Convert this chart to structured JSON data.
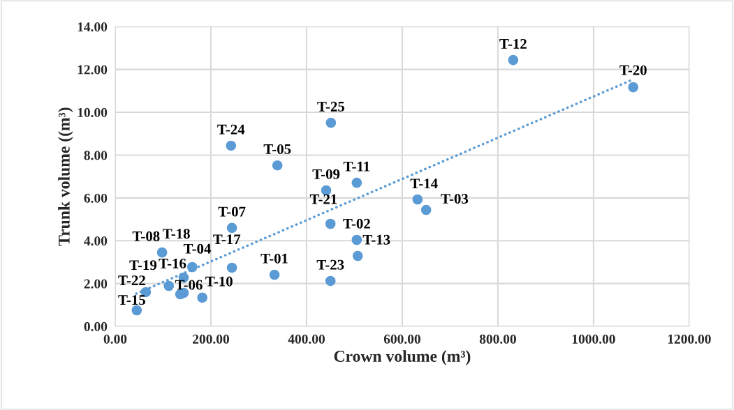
{
  "chart_data": {
    "type": "scatter",
    "xlabel": "Crown volume (m³)",
    "ylabel": "Trunk volume ((m³)",
    "xlim": [
      0,
      1200
    ],
    "ylim": [
      0,
      14
    ],
    "xticks": [
      {
        "value": 0,
        "label": "0.00"
      },
      {
        "value": 200,
        "label": "200.00"
      },
      {
        "value": 400,
        "label": "400.00"
      },
      {
        "value": 600,
        "label": "600.00"
      },
      {
        "value": 800,
        "label": "800.00"
      },
      {
        "value": 1000,
        "label": "1000.00"
      },
      {
        "value": 1200,
        "label": "1200.00"
      }
    ],
    "yticks": [
      {
        "value": 0,
        "label": "0.00"
      },
      {
        "value": 2,
        "label": "2.00"
      },
      {
        "value": 4,
        "label": "4.00"
      },
      {
        "value": 6,
        "label": "6.00"
      },
      {
        "value": 8,
        "label": "8.00"
      },
      {
        "value": 10,
        "label": "10.00"
      },
      {
        "value": 12,
        "label": "12.00"
      },
      {
        "value": 14,
        "label": "14.00"
      }
    ],
    "grid": true,
    "legend": false,
    "series": [
      {
        "color": "#5b9bd5",
        "marker": "circle",
        "x": [
          333,
          505,
          650,
          143,
          143,
          244,
          98,
          441,
          182,
          832,
          507,
          632,
          45,
          136,
          161,
          244,
          112,
          1083,
          450,
          64,
          450,
          242
        ],
        "values": [
          2.41,
          4.04,
          5.44,
          2.28,
          1.56,
          4.6,
          3.45,
          6.35,
          1.34,
          12.44,
          3.29,
          5.93,
          0.75,
          1.5,
          2.77,
          2.74,
          1.89,
          11.17,
          4.79,
          1.6,
          2.12,
          8.44
        ],
        "value_labels": [
          "T-01",
          "T-02",
          "T-03",
          "T-04",
          "T-06",
          "T-07",
          "T-08",
          "T-09",
          "T-10",
          "T-12",
          "T-13",
          "T-14",
          "T-15",
          "T-16",
          "T-18",
          "T-17",
          "T-19",
          "T-20",
          "T-21",
          "T-22",
          "T-23",
          "T-24"
        ]
      },
      {
        "color": "#5b9bd5",
        "marker": "circle",
        "x": [
          339,
          505,
          451
        ],
        "values": [
          7.52,
          6.71,
          9.51
        ],
        "value_labels": [
          "T-05",
          "T-11",
          "T-25"
        ]
      },
      {
        "type": "line",
        "color": "#5b9bd5",
        "line_style": "dotted",
        "x": [
          44,
          1076
        ],
        "values": [
          1.53,
          11.47
        ]
      }
    ]
  }
}
